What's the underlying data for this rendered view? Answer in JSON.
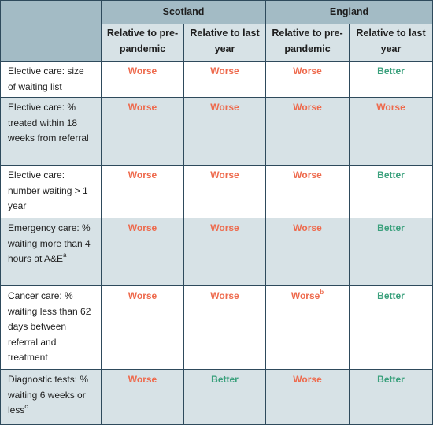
{
  "colors": {
    "worse": "#ee6a4d",
    "better": "#3aa07c",
    "header_dark": "#a3bbc5",
    "header_light": "#d7e2e6"
  },
  "header": {
    "regions": [
      "Scotland",
      "England"
    ],
    "columns": [
      "Relative to pre-pandemic",
      "Relative to last year",
      "Relative to pre-pandemic",
      "Relative to last year"
    ]
  },
  "rows": [
    {
      "label": "Elective care: size of waiting list",
      "values": [
        "Worse",
        "Worse",
        "Worse",
        "Better"
      ]
    },
    {
      "label": "Elective care: % treated within 18 weeks from referral",
      "values": [
        "Worse",
        "Worse",
        "Worse",
        "Worse"
      ]
    },
    {
      "label": "Elective care: number waiting > 1 year",
      "values": [
        "Worse",
        "Worse",
        "Worse",
        "Better"
      ]
    },
    {
      "label": "Emergency care: % waiting more than 4 hours at A&E",
      "label_sup": "a",
      "values": [
        "Worse",
        "Worse",
        "Worse",
        "Better"
      ]
    },
    {
      "label": "Cancer care: % waiting less than 62 days between referral and treatment",
      "values": [
        "Worse",
        "Worse",
        "Worse",
        "Better"
      ],
      "value_sups": [
        "",
        "",
        "b",
        ""
      ]
    },
    {
      "label": "Diagnostic tests: % waiting 6 weeks or less",
      "label_sup": "c",
      "values": [
        "Worse",
        "Better",
        "Worse",
        "Better"
      ]
    }
  ]
}
